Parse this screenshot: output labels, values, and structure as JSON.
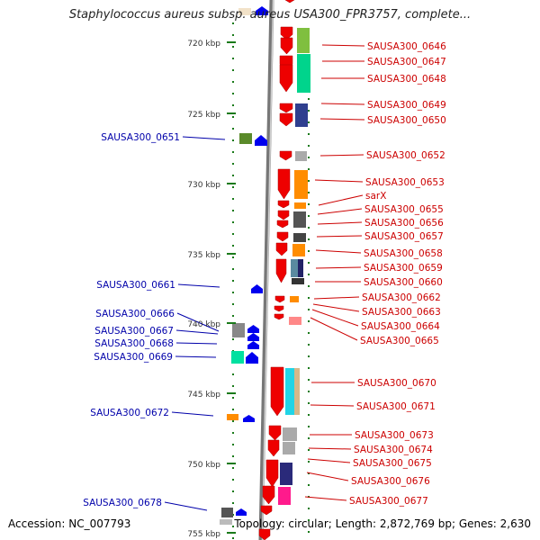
{
  "title": "Staphylococcus aureus subsp. aureus USA300_FPR3757, complete...",
  "footer": {
    "accession": "Accession: NC_007793",
    "info": "Topology: circular; Length: 2,872,769 bp; Genes: 2,630"
  },
  "colors": {
    "right_label": "#cc0000",
    "left_label": "#0000aa",
    "tick": "#1a7a1a",
    "backbone": "#888888",
    "strand_plus": "#0000ee",
    "strand_minus": "#ee0000"
  },
  "ruler": [
    "720 kbp",
    "725 kbp",
    "730 kbp",
    "735 kbp",
    "740 kbp",
    "745 kbp",
    "750 kbp",
    "755 kbp"
  ],
  "right_labels": [
    "SAUSA300_0646",
    "SAUSA300_0647",
    "SAUSA300_0648",
    "SAUSA300_0649",
    "SAUSA300_0650",
    "SAUSA300_0652",
    "SAUSA300_0653",
    "sarX",
    "SAUSA300_0655",
    "SAUSA300_0656",
    "SAUSA300_0657",
    "SAUSA300_0658",
    "SAUSA300_0659",
    "SAUSA300_0660",
    "SAUSA300_0662",
    "SAUSA300_0663",
    "SAUSA300_0664",
    "SAUSA300_0665",
    "SAUSA300_0670",
    "SAUSA300_0671",
    "SAUSA300_0673",
    "SAUSA300_0674",
    "SAUSA300_0675",
    "SAUSA300_0676",
    "SAUSA300_0677"
  ],
  "left_labels": [
    "SAUSA300_0651",
    "SAUSA300_0661",
    "SAUSA300_0666",
    "SAUSA300_0667",
    "SAUSA300_0668",
    "SAUSA300_0669",
    "SAUSA300_0672",
    "SAUSA300_0678"
  ]
}
